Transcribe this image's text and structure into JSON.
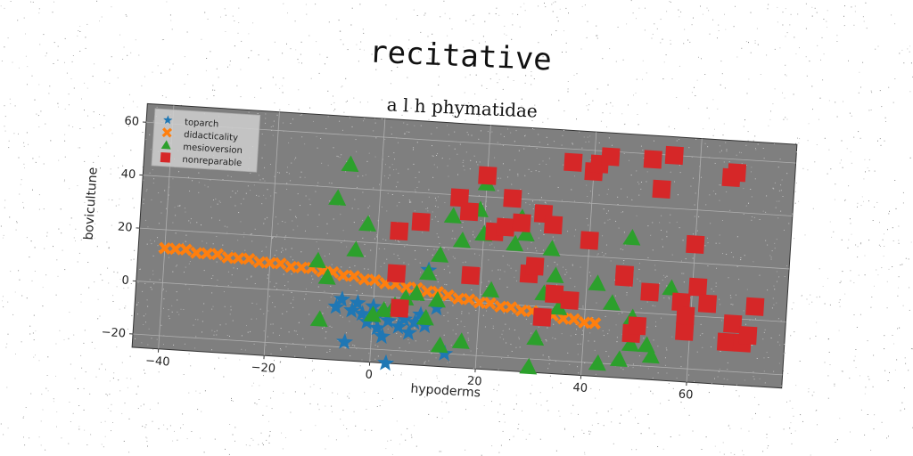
{
  "chart_data": {
    "type": "scatter",
    "title": "recitative",
    "subtitle": "a l h phymatidae",
    "xlabel": "hypoderms",
    "ylabel": "bovicultune",
    "xlim": [
      -45,
      78
    ],
    "ylim": [
      -25,
      67
    ],
    "xticks": [
      -40,
      -20,
      0,
      20,
      40,
      60
    ],
    "yticks": [
      -20,
      0,
      20,
      40,
      60
    ],
    "grid": true,
    "legend_position": "top-left",
    "series": [
      {
        "name": "toparch",
        "marker": "star",
        "color": "#1f77b4",
        "points": [
          [
            -7,
            -5
          ],
          [
            -6,
            -2
          ],
          [
            -5,
            -18
          ],
          [
            -4,
            -6
          ],
          [
            -3,
            -3
          ],
          [
            -2,
            -7
          ],
          [
            -1,
            -10
          ],
          [
            0,
            -4
          ],
          [
            0,
            -8
          ],
          [
            1,
            -12
          ],
          [
            2,
            -6
          ],
          [
            2,
            -15
          ],
          [
            3,
            -25
          ],
          [
            3,
            -9
          ],
          [
            4,
            -5
          ],
          [
            5,
            -11
          ],
          [
            6,
            -8
          ],
          [
            7,
            -13
          ],
          [
            8,
            -9
          ],
          [
            9,
            -6
          ],
          [
            10,
            -10
          ],
          [
            10,
            11
          ],
          [
            12,
            -3
          ],
          [
            14,
            -20
          ]
        ]
      },
      {
        "name": "didacticality",
        "marker": "x",
        "color": "#ff7f0e",
        "points": [
          [
            -40,
            13
          ],
          [
            -38,
            13
          ],
          [
            -36,
            13
          ],
          [
            -34,
            12
          ],
          [
            -32,
            12
          ],
          [
            -30,
            12
          ],
          [
            -28,
            11
          ],
          [
            -26,
            11
          ],
          [
            -24,
            11
          ],
          [
            -22,
            10
          ],
          [
            -20,
            10
          ],
          [
            -18,
            10
          ],
          [
            -16,
            9
          ],
          [
            -14,
            9
          ],
          [
            -12,
            9
          ],
          [
            -10,
            8
          ],
          [
            -8,
            8
          ],
          [
            -6,
            7
          ],
          [
            -4,
            7
          ],
          [
            -2,
            6
          ],
          [
            0,
            6
          ],
          [
            2,
            5
          ],
          [
            4,
            5
          ],
          [
            6,
            4
          ],
          [
            8,
            4
          ],
          [
            10,
            3
          ],
          [
            12,
            3
          ],
          [
            14,
            2
          ],
          [
            16,
            1
          ],
          [
            18,
            1
          ],
          [
            20,
            0
          ],
          [
            22,
            0
          ],
          [
            24,
            -1
          ],
          [
            26,
            -1
          ],
          [
            28,
            -2
          ],
          [
            30,
            -2
          ],
          [
            32,
            -3
          ],
          [
            34,
            -3
          ],
          [
            36,
            -4
          ],
          [
            38,
            -4
          ],
          [
            40,
            -5
          ],
          [
            42,
            -5
          ]
        ]
      },
      {
        "name": "mesioversion",
        "marker": "triangle",
        "color": "#2ca02c",
        "points": [
          [
            -6,
            49
          ],
          [
            -8,
            36
          ],
          [
            -11,
            12
          ],
          [
            -9,
            6
          ],
          [
            -10,
            -10
          ],
          [
            -4,
            17
          ],
          [
            -2,
            27
          ],
          [
            0,
            -7
          ],
          [
            2,
            -5
          ],
          [
            4,
            -3
          ],
          [
            6,
            0
          ],
          [
            8,
            2
          ],
          [
            10,
            10
          ],
          [
            10,
            -7
          ],
          [
            12,
            17
          ],
          [
            12,
            0
          ],
          [
            13,
            -17
          ],
          [
            14,
            32
          ],
          [
            16,
            23
          ],
          [
            17,
            -15
          ],
          [
            20,
            45
          ],
          [
            19,
            35
          ],
          [
            20,
            26
          ],
          [
            22,
            5
          ],
          [
            26,
            23
          ],
          [
            27,
            33
          ],
          [
            28,
            27
          ],
          [
            30,
            -23
          ],
          [
            31,
            -12
          ],
          [
            33,
            22
          ],
          [
            34,
            12
          ],
          [
            35,
            0
          ],
          [
            42,
            10
          ],
          [
            45,
            3
          ],
          [
            47,
            -18
          ],
          [
            49,
            -12
          ],
          [
            49,
            -2
          ],
          [
            50,
            -5
          ],
          [
            52,
            -12
          ],
          [
            53,
            -16
          ],
          [
            56,
            10
          ],
          [
            43,
            -20
          ],
          [
            48,
            28
          ],
          [
            32,
            5
          ]
        ]
      },
      {
        "name": "nonreparable",
        "marker": "square",
        "color": "#d62728",
        "points": [
          [
            4,
            9
          ],
          [
            4,
            25
          ],
          [
            5,
            -4
          ],
          [
            8,
            29
          ],
          [
            15,
            39
          ],
          [
            17,
            34
          ],
          [
            18,
            10
          ],
          [
            20,
            48
          ],
          [
            22,
            27
          ],
          [
            24,
            29
          ],
          [
            25,
            40
          ],
          [
            27,
            31
          ],
          [
            29,
            12
          ],
          [
            30,
            15
          ],
          [
            31,
            35
          ],
          [
            32,
            -4
          ],
          [
            33,
            31
          ],
          [
            34,
            5
          ],
          [
            36,
            55
          ],
          [
            37,
            3
          ],
          [
            40,
            52
          ],
          [
            40,
            26
          ],
          [
            41,
            55
          ],
          [
            43,
            58
          ],
          [
            47,
            13
          ],
          [
            47,
            14
          ],
          [
            49,
            -8
          ],
          [
            50,
            -5
          ],
          [
            52,
            8
          ],
          [
            53,
            47
          ],
          [
            58,
            5
          ],
          [
            59,
            -6
          ],
          [
            59,
            0
          ],
          [
            60,
            27
          ],
          [
            61,
            11
          ],
          [
            63,
            5
          ],
          [
            66,
            53
          ],
          [
            67,
            55
          ],
          [
            67,
            -9
          ],
          [
            68,
            -2
          ],
          [
            70,
            -9
          ],
          [
            71,
            -6
          ],
          [
            72,
            5
          ],
          [
            55,
            60
          ],
          [
            51,
            58
          ]
        ]
      }
    ]
  }
}
